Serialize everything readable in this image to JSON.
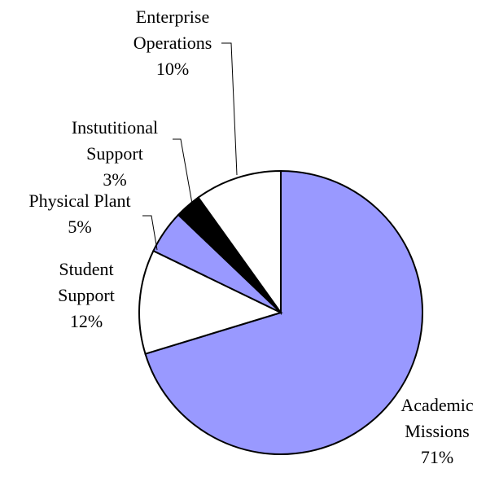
{
  "chart_data": {
    "type": "pie",
    "slices": [
      {
        "label": [
          "Academic",
          "Missions"
        ],
        "pct": "71%",
        "value": 71,
        "color": "#9999ff"
      },
      {
        "label": [
          "Student",
          "Support"
        ],
        "pct": "12%",
        "value": 12,
        "color": "#ffffff"
      },
      {
        "label": [
          "Physical Plant"
        ],
        "pct": "5%",
        "value": 5,
        "color": "#9999ff"
      },
      {
        "label": [
          "Instutitional",
          "Support"
        ],
        "pct": "3%",
        "value": 3,
        "color": "#000000"
      },
      {
        "label": [
          "Enterprise",
          "Operations"
        ],
        "pct": "10%",
        "value": 10,
        "color": "#ffffff"
      }
    ]
  }
}
